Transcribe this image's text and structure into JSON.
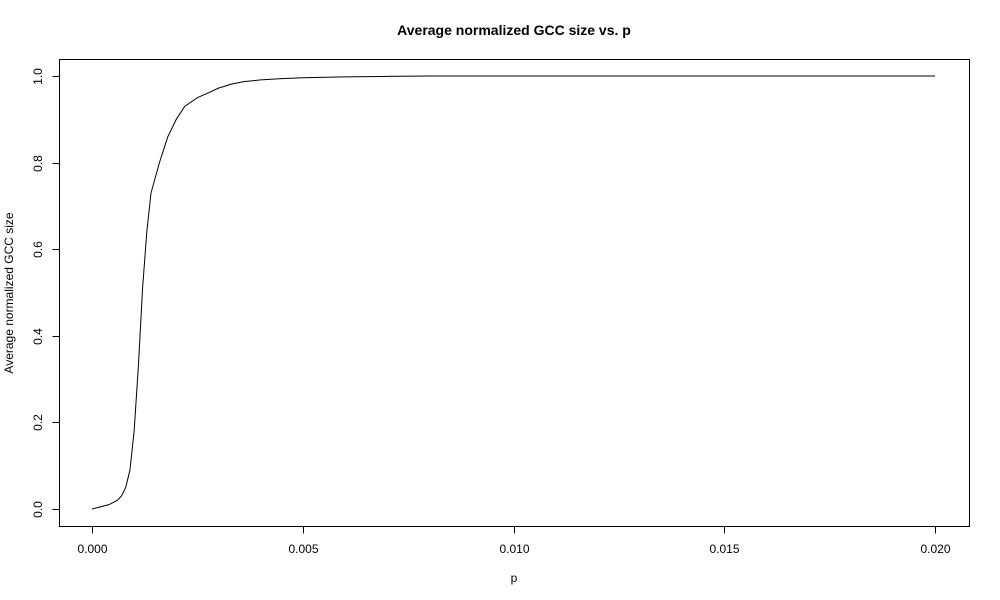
{
  "chart_data": {
    "type": "line",
    "title": "Average normalized GCC size vs. p",
    "xlabel": "p",
    "ylabel": "Average normalized GCC size",
    "xlim": [
      0,
      0.02
    ],
    "ylim": [
      0,
      1
    ],
    "grid": false,
    "legend": "none",
    "x_ticks": [
      0,
      0.005,
      0.01,
      0.015,
      0.02
    ],
    "x_tick_labels": [
      "0.000",
      "0.005",
      "0.010",
      "0.015",
      "0.020"
    ],
    "y_ticks": [
      0,
      0.2,
      0.4,
      0.6,
      0.8,
      1.0
    ],
    "y_tick_labels": [
      "0.0",
      "0.2",
      "0.4",
      "0.6",
      "0.8",
      "1.0"
    ],
    "series": [
      {
        "x": [
          0.0,
          0.0002,
          0.0004,
          0.0006,
          0.0007,
          0.0008,
          0.0009,
          0.001,
          0.0011,
          0.0012,
          0.0013,
          0.0014,
          0.0016,
          0.0018,
          0.002,
          0.0022,
          0.0025,
          0.0028,
          0.003,
          0.0033,
          0.0036,
          0.004,
          0.0045,
          0.005,
          0.006,
          0.007,
          0.008,
          0.01,
          0.012,
          0.015,
          0.02
        ],
        "y": [
          0.0,
          0.005,
          0.01,
          0.02,
          0.03,
          0.05,
          0.09,
          0.18,
          0.33,
          0.51,
          0.64,
          0.73,
          0.8,
          0.86,
          0.9,
          0.93,
          0.95,
          0.963,
          0.972,
          0.981,
          0.987,
          0.991,
          0.994,
          0.996,
          0.998,
          0.999,
          1.0,
          1.0,
          1.0,
          1.0,
          1.0
        ]
      }
    ]
  }
}
